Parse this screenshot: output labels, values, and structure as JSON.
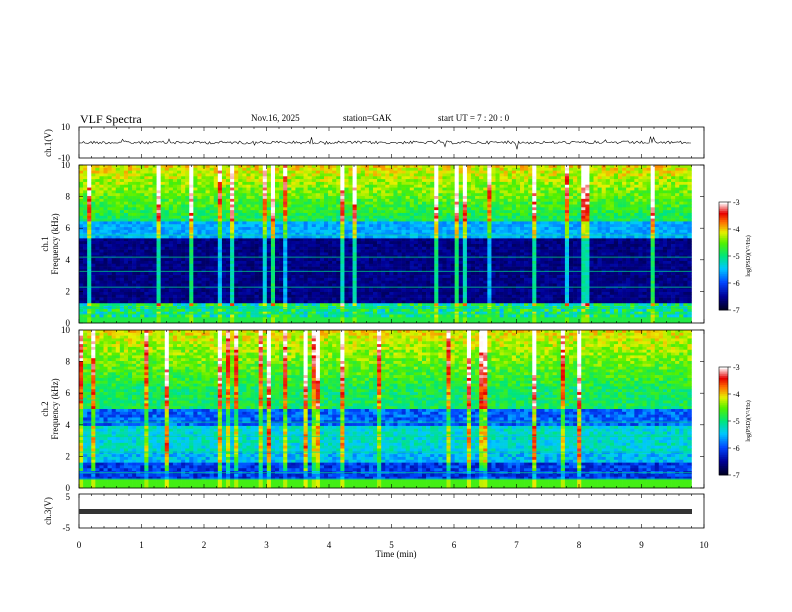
{
  "header": {
    "title": "VLF Spectra",
    "date": "Nov.16, 2025",
    "station": "station=GAK",
    "start": "start  UT =   7 : 20 : 0"
  },
  "chart_data": [
    {
      "type": "line",
      "panel": "ch1-waveform",
      "ylabel": "ch.1(V)",
      "ylim": [
        -10,
        10
      ],
      "yticks": [
        "10",
        "-10"
      ],
      "xlim": [
        0,
        10
      ],
      "series": [
        {
          "values": []
        }
      ]
    },
    {
      "type": "heatmap",
      "panel": "ch1-spectrogram",
      "ylabel": "ch.1\nFrequency (kHz)",
      "ylim": [
        0,
        10
      ],
      "yticks": [
        "0",
        "2",
        "4",
        "6",
        "8",
        "10"
      ],
      "xlim": [
        0,
        9.8
      ],
      "colorbar": {
        "label": "log(PSD)(V²/Hz)",
        "range": [
          -7,
          -3
        ],
        "ticks": [
          "-3",
          "-4",
          "-5",
          "-6",
          "-7"
        ]
      }
    },
    {
      "type": "heatmap",
      "panel": "ch2-spectrogram",
      "ylabel": "ch.2\nFrequency (kHz)",
      "ylim": [
        0,
        10
      ],
      "yticks": [
        "0",
        "2",
        "4",
        "6",
        "8",
        "10"
      ],
      "xlim": [
        0,
        9.8
      ],
      "colorbar": {
        "label": "log(PSD)(V²/Hz)",
        "range": [
          -7,
          -3
        ],
        "ticks": [
          "-3",
          "-4",
          "-5",
          "-6",
          "-7"
        ]
      }
    },
    {
      "type": "line",
      "panel": "ch3-waveform",
      "ylabel": "ch.3(V)",
      "ylim": [
        -5,
        5
      ],
      "yticks": [
        "5",
        "-5"
      ],
      "xlim": [
        0,
        10
      ],
      "series": [
        {
          "values": []
        }
      ]
    }
  ],
  "xaxis": {
    "label": "Time  (min)",
    "ticks": [
      "0",
      "1",
      "2",
      "3",
      "4",
      "5",
      "6",
      "7",
      "8",
      "9",
      "10"
    ]
  },
  "colors": {
    "ch1_trace": "#000000",
    "ch3_trace": "#333333",
    "quiet_band": "#000022",
    "background": "#ffffff"
  }
}
